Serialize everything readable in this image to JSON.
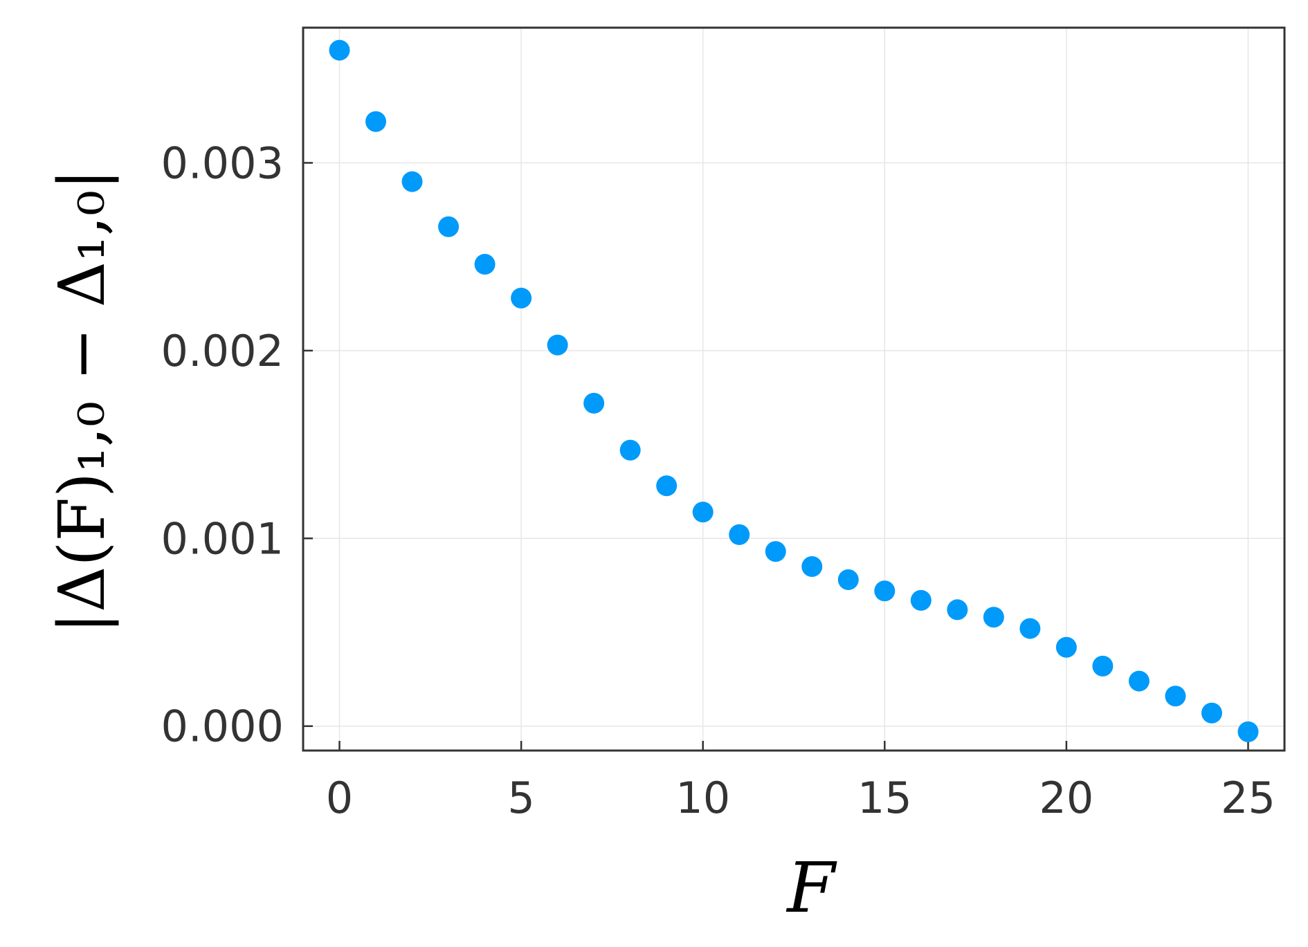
{
  "chart_data": {
    "type": "scatter",
    "title": "",
    "xlabel": "F",
    "ylabel": "|Δ(F)₁,₀ − Δ₁,₀|",
    "xlim": [
      -1,
      26
    ],
    "ylim": [
      -0.00013,
      0.00372
    ],
    "xticks": [
      0,
      5,
      10,
      15,
      20,
      25
    ],
    "xtick_labels": [
      "0",
      "5",
      "10",
      "15",
      "20",
      "25"
    ],
    "yticks": [
      0.0,
      0.001,
      0.002,
      0.003
    ],
    "ytick_labels": [
      "0.000",
      "0.001",
      "0.002",
      "0.003"
    ],
    "grid": true,
    "legend": "none",
    "marker_color": "#009AFA",
    "series": [
      {
        "x": [
          0,
          1,
          2,
          3,
          4,
          5,
          6,
          7,
          8,
          9,
          10,
          11,
          12,
          13,
          14,
          15,
          16,
          17,
          18,
          19,
          20,
          21,
          22,
          23,
          24,
          25
        ],
        "y": [
          0.0036,
          0.00322,
          0.0029,
          0.00266,
          0.00246,
          0.00228,
          0.00203,
          0.00172,
          0.00147,
          0.00128,
          0.00114,
          0.00102,
          0.00093,
          0.00085,
          0.00078,
          0.00072,
          0.00067,
          0.00062,
          0.00058,
          0.00052,
          0.00042,
          0.00032,
          0.00024,
          0.00016,
          7e-05,
          -3e-05
        ]
      }
    ]
  }
}
